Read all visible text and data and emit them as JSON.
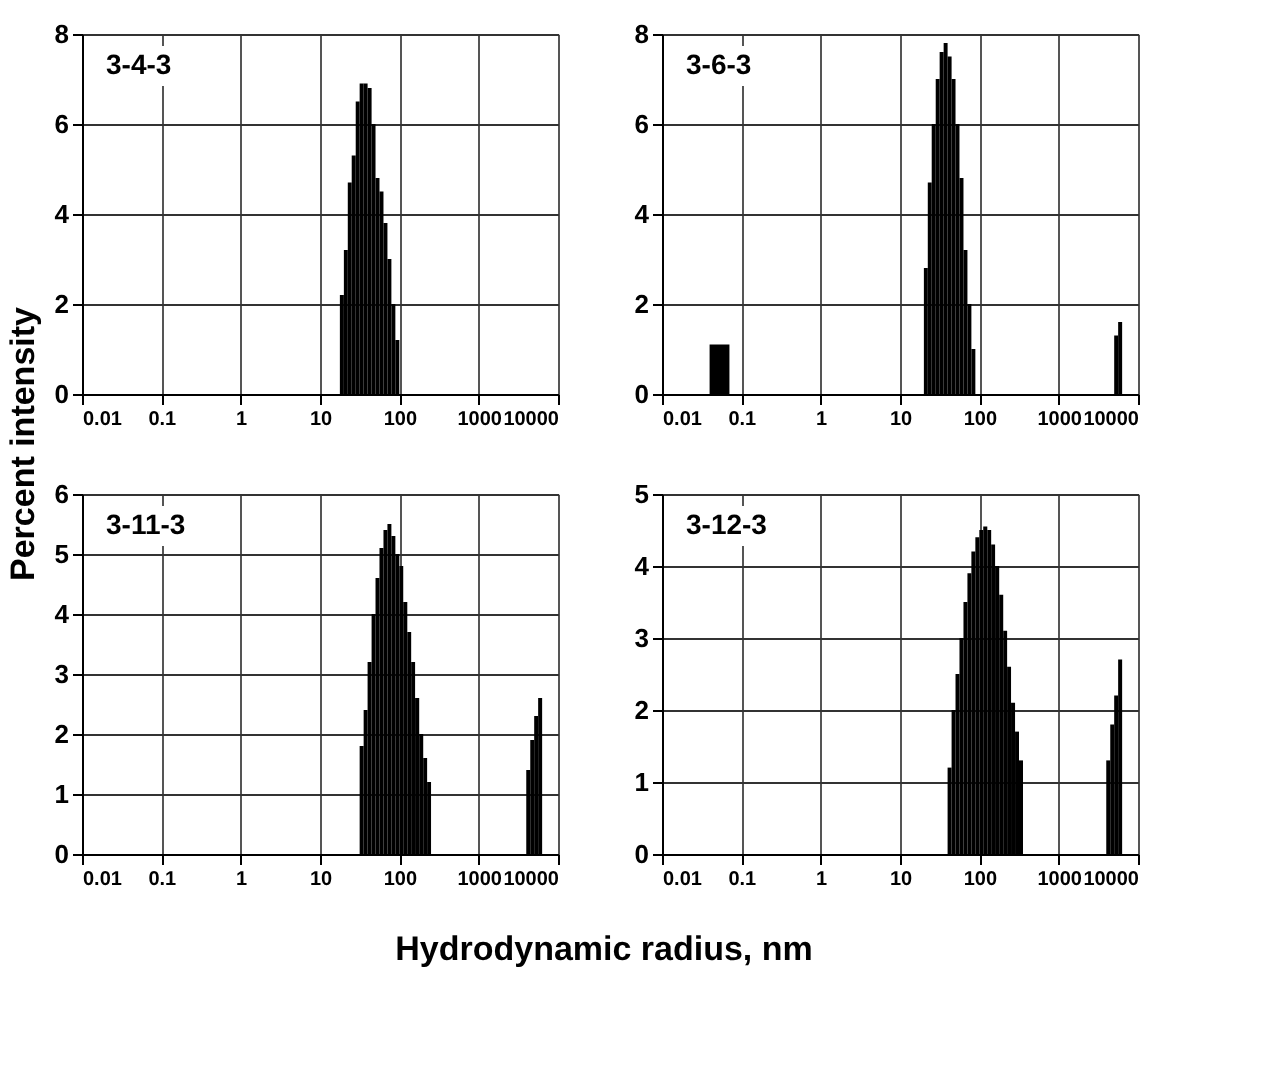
{
  "chart_data": [
    {
      "type": "histogram",
      "annotations": [
        "3-4-3"
      ],
      "ylabel": "Percent intensity",
      "color": "#000000",
      "log": "x",
      "grid": true,
      "bins": [
        17.8,
        20.0,
        22.4,
        25.1,
        28.2,
        31.6,
        35.5,
        39.8,
        44.7,
        50.1,
        56.2,
        63.1,
        70.8,
        79.4,
        89.1,
        100
      ],
      "values": [
        2.2,
        3.2,
        4.7,
        5.3,
        6.5,
        6.9,
        6.9,
        6.8,
        6.0,
        4.8,
        4.5,
        3.8,
        3.0,
        2.0,
        1.2
      ],
      "xlim": [
        0.01,
        10000
      ],
      "xticks": [
        0.01,
        0.1,
        1,
        10,
        100,
        1000,
        10000
      ],
      "ylim": [
        0,
        8
      ],
      "yticks": [
        0,
        2,
        4,
        6,
        8
      ]
    },
    {
      "type": "histogram",
      "annotations": [
        "3-6-3"
      ],
      "color": "#000000",
      "log": "x",
      "grid": true,
      "bins": [
        0.0398,
        0.0708,
        20.0,
        22.4,
        25.1,
        28.2,
        31.6,
        35.5,
        39.8,
        44.7,
        50.1,
        56.2,
        63.1,
        70.8,
        79.4,
        89.1,
        5010,
        5620,
        6310
      ],
      "values": [
        1.1,
        0,
        2.8,
        4.7,
        6.0,
        7.0,
        7.6,
        7.8,
        7.5,
        7.0,
        6.0,
        4.8,
        3.2,
        2.0,
        1.0,
        0,
        1.3,
        1.6
      ],
      "xlim": [
        0.01,
        10000
      ],
      "xticks": [
        0.01,
        0.1,
        1,
        10,
        100,
        1000,
        10000
      ],
      "ylim": [
        0,
        8
      ],
      "yticks": [
        0,
        2,
        4,
        6,
        8
      ]
    },
    {
      "type": "histogram",
      "annotations": [
        "3-11-3"
      ],
      "xlabel": "Hydrodynamic radius, nm",
      "color": "#000000",
      "log": "x",
      "grid": true,
      "bins": [
        31.6,
        35.5,
        39.8,
        44.7,
        50.1,
        56.2,
        63.1,
        70.8,
        79.4,
        89.1,
        100,
        112,
        126,
        141,
        158,
        178,
        200,
        224,
        251,
        3980,
        4470,
        5010,
        5620,
        6310
      ],
      "values": [
        1.8,
        2.4,
        3.2,
        4.0,
        4.6,
        5.1,
        5.4,
        5.5,
        5.3,
        5.0,
        4.8,
        4.2,
        3.7,
        3.2,
        2.6,
        2.0,
        1.6,
        1.2,
        0,
        1.4,
        1.9,
        2.3,
        2.6
      ],
      "xlim": [
        0.01,
        10000
      ],
      "xticks": [
        0.01,
        0.1,
        1,
        10,
        100,
        1000,
        10000
      ],
      "ylim": [
        0,
        6
      ],
      "yticks": [
        0,
        1,
        2,
        3,
        4,
        5,
        6
      ]
    },
    {
      "type": "histogram",
      "annotations": [
        "3-12-3"
      ],
      "color": "#000000",
      "log": "x",
      "grid": true,
      "bins": [
        39.8,
        44.7,
        50.1,
        56.2,
        63.1,
        70.8,
        79.4,
        89.1,
        100,
        112,
        126,
        141,
        158,
        178,
        200,
        224,
        251,
        282,
        316,
        355,
        3980,
        4470,
        5010,
        5620,
        6310
      ],
      "values": [
        1.2,
        2.0,
        2.5,
        3.0,
        3.5,
        3.9,
        4.2,
        4.4,
        4.5,
        4.55,
        4.5,
        4.3,
        4.0,
        3.6,
        3.1,
        2.6,
        2.1,
        1.7,
        1.3,
        0,
        1.3,
        1.8,
        2.2,
        2.7
      ],
      "xlim": [
        0.01,
        10000
      ],
      "xticks": [
        0.01,
        0.1,
        1,
        10,
        100,
        1000,
        10000
      ],
      "ylim": [
        0,
        5
      ],
      "yticks": [
        0,
        1,
        2,
        3,
        4,
        5
      ]
    }
  ]
}
